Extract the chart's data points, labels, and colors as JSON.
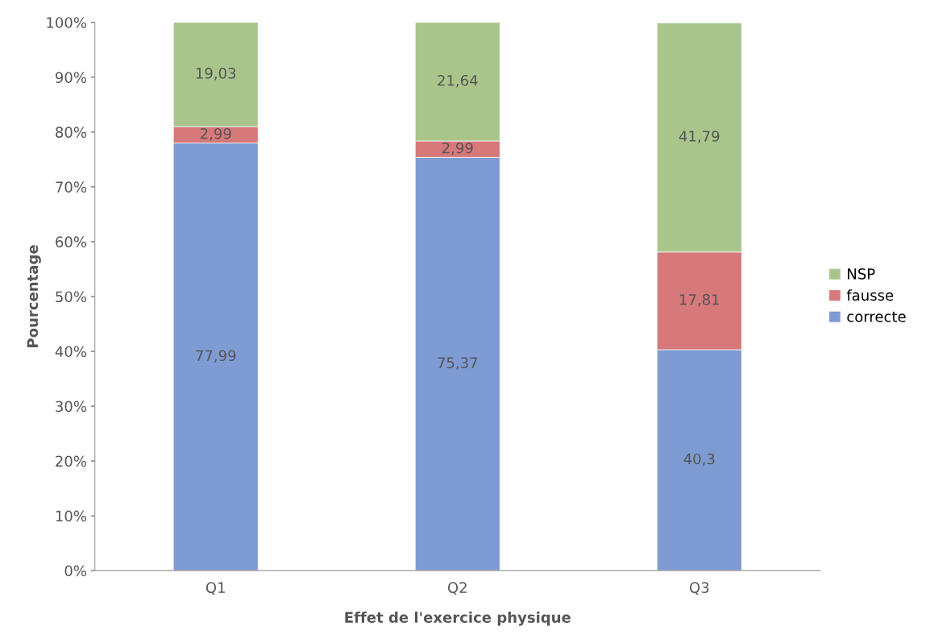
{
  "chart_data": {
    "type": "bar",
    "stacked": true,
    "xlabel": "Effet de l'exercice physique",
    "ylabel": "Pourcentage",
    "categories": [
      "Q1",
      "Q2",
      "Q3"
    ],
    "series": [
      {
        "name": "correcte",
        "color": "#7e9bd3",
        "values": [
          77.99,
          75.37,
          40.3
        ],
        "value_labels": [
          "77,99",
          "75,37",
          "40,3"
        ]
      },
      {
        "name": "fausse",
        "color": "#d7787a",
        "values": [
          2.99,
          2.99,
          17.81
        ],
        "value_labels": [
          "2,99",
          "2,99",
          "17,81"
        ]
      },
      {
        "name": "NSP",
        "color": "#a9c58c",
        "values": [
          19.03,
          21.64,
          41.79
        ],
        "value_labels": [
          "19,03",
          "21,64",
          "41,79"
        ]
      }
    ],
    "ylim": [
      0,
      100
    ],
    "yticks": [
      {
        "value": 0,
        "label": "0%"
      },
      {
        "value": 10,
        "label": "10%"
      },
      {
        "value": 20,
        "label": "20%"
      },
      {
        "value": 30,
        "label": "30%"
      },
      {
        "value": 40,
        "label": "40%"
      },
      {
        "value": 50,
        "label": "50%"
      },
      {
        "value": 60,
        "label": "60%"
      },
      {
        "value": 70,
        "label": "70%"
      },
      {
        "value": 80,
        "label": "80%"
      },
      {
        "value": 90,
        "label": "90%"
      },
      {
        "value": 100,
        "label": "100%"
      }
    ],
    "grid": false,
    "legend": "right"
  }
}
